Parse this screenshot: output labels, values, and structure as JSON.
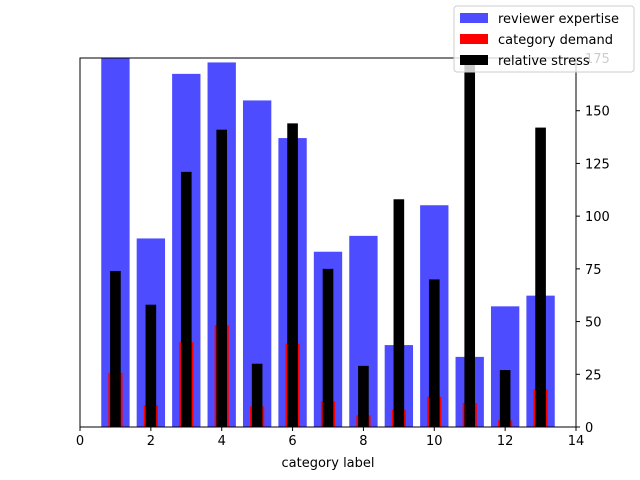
{
  "chart_data": {
    "type": "bar",
    "title": "",
    "xlabel": "category label",
    "ylabel_left": "",
    "ylabel_right": "",
    "x_range": [
      0,
      14
    ],
    "x_ticks": [
      0,
      2,
      4,
      6,
      8,
      10,
      12,
      14
    ],
    "left_axis": {
      "range": [
        0,
        100
      ],
      "ticks_shown": false
    },
    "right_axis": {
      "range": [
        0,
        175
      ],
      "ticks": [
        0,
        25,
        50,
        75,
        100,
        125,
        150,
        175
      ]
    },
    "grid": false,
    "legend_position": "top-right",
    "categories": [
      1,
      2,
      3,
      4,
      5,
      6,
      7,
      8,
      9,
      10,
      11,
      12,
      13
    ],
    "series": [
      {
        "name": "reviewer expertise",
        "axis": "left",
        "color": "#4d4dff",
        "values": [
          100.0,
          51.1,
          95.7,
          98.8,
          88.5,
          78.3,
          47.5,
          51.8,
          22.2,
          60.1,
          19.0,
          32.7,
          35.6
        ]
      },
      {
        "name": "category demand",
        "axis": "left",
        "color": "#ff0000",
        "values": [
          14.7,
          5.9,
          23.0,
          27.6,
          5.6,
          22.6,
          7.0,
          3.2,
          4.7,
          8.2,
          6.5,
          1.8,
          10.2
        ]
      },
      {
        "name": "relative stress",
        "axis": "right",
        "color": "#000000",
        "values": [
          74,
          58,
          121,
          141,
          30,
          144,
          75,
          29,
          108,
          70,
          172,
          27,
          142
        ]
      }
    ]
  }
}
